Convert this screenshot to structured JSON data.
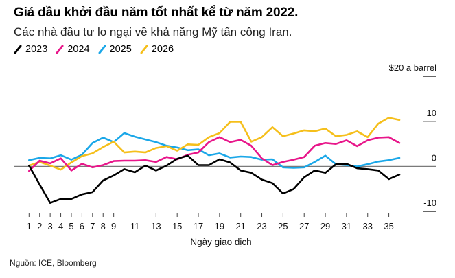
{
  "chart_data": {
    "type": "line",
    "title": "Giá dầu khởi đầu năm tốt nhất kể từ năm 2022.",
    "subtitle": "Các nhà đầu tư lo ngại về khả năng Mỹ tấn công Iran.",
    "xlabel": "Ngày giao dịch",
    "ylabel": "$20 a barrel",
    "source": "Nguồn: ICE, Bloomberg",
    "x": [
      1,
      2,
      3,
      4,
      5,
      6,
      7,
      8,
      9,
      10,
      11,
      12,
      13,
      14,
      15,
      16,
      17,
      18,
      19,
      20,
      21,
      22,
      23,
      24,
      25,
      26,
      27,
      28,
      29,
      30,
      31,
      32,
      33,
      34,
      35,
      36
    ],
    "x_ticks": [
      1,
      2,
      3,
      4,
      5,
      6,
      7,
      8,
      9,
      11,
      13,
      15,
      17,
      19,
      21,
      23,
      25,
      27,
      29,
      31,
      33,
      35
    ],
    "y_ticks": [
      {
        "value": 20,
        "label": "$20 a barrel"
      },
      {
        "value": 10,
        "label": "10"
      },
      {
        "value": 0,
        "label": "0"
      },
      {
        "value": -10,
        "label": "-10"
      }
    ],
    "ylim": [
      -10,
      20
    ],
    "xlim": [
      1,
      36
    ],
    "grid": false,
    "legend_position": "top-left",
    "series": [
      {
        "name": "2023",
        "color": "#000000",
        "values": [
          0.2,
          -4.0,
          -8.1,
          -7.2,
          -7.2,
          -6.2,
          -5.7,
          -3.1,
          -2.0,
          -0.6,
          -1.3,
          0.2,
          -0.9,
          0.2,
          1.7,
          2.4,
          0.3,
          0.3,
          1.6,
          0.9,
          -0.9,
          -1.4,
          -2.9,
          -3.7,
          -6.0,
          -5.0,
          -2.4,
          -0.9,
          -1.4,
          0.5,
          0.6,
          -0.4,
          -0.6,
          -0.9,
          -2.8,
          -1.8
        ]
      },
      {
        "name": "2024",
        "color": "#e8168a",
        "values": [
          -1.0,
          1.3,
          0.7,
          1.8,
          -0.9,
          0.6,
          -0.2,
          0.3,
          1.2,
          1.3,
          1.3,
          1.4,
          1.0,
          2.1,
          1.6,
          2.6,
          3.1,
          5.4,
          6.5,
          5.4,
          5.9,
          4.6,
          1.8,
          0.3,
          1.0,
          1.5,
          2.1,
          4.6,
          5.2,
          5.0,
          5.8,
          4.5,
          5.8,
          6.4,
          6.5,
          5.2
        ]
      },
      {
        "name": "2025",
        "color": "#1aa7e8",
        "values": [
          1.4,
          1.9,
          1.8,
          2.5,
          1.5,
          2.6,
          5.2,
          6.4,
          5.4,
          7.4,
          6.6,
          6.0,
          5.4,
          4.6,
          4.2,
          3.6,
          3.8,
          2.5,
          2.9,
          2.0,
          2.2,
          2.1,
          1.5,
          1.6,
          -0.2,
          -0.3,
          -0.2,
          1.0,
          2.4,
          0.5,
          0.3,
          0.0,
          0.5,
          1.1,
          1.4,
          1.9
        ]
      },
      {
        "name": "2026",
        "color": "#f5bf1b",
        "values": [
          0.2,
          1.0,
          0.2,
          -0.7,
          0.9,
          2.3,
          2.9,
          4.3,
          5.5,
          3.1,
          3.3,
          3.1,
          4.1,
          4.5,
          3.5,
          4.9,
          4.8,
          6.5,
          7.4,
          9.9,
          9.9,
          5.5,
          6.5,
          8.7,
          6.7,
          7.3,
          8.0,
          7.8,
          8.4,
          6.7,
          7.0,
          7.8,
          6.5,
          9.5,
          10.8,
          10.3
        ]
      }
    ]
  }
}
